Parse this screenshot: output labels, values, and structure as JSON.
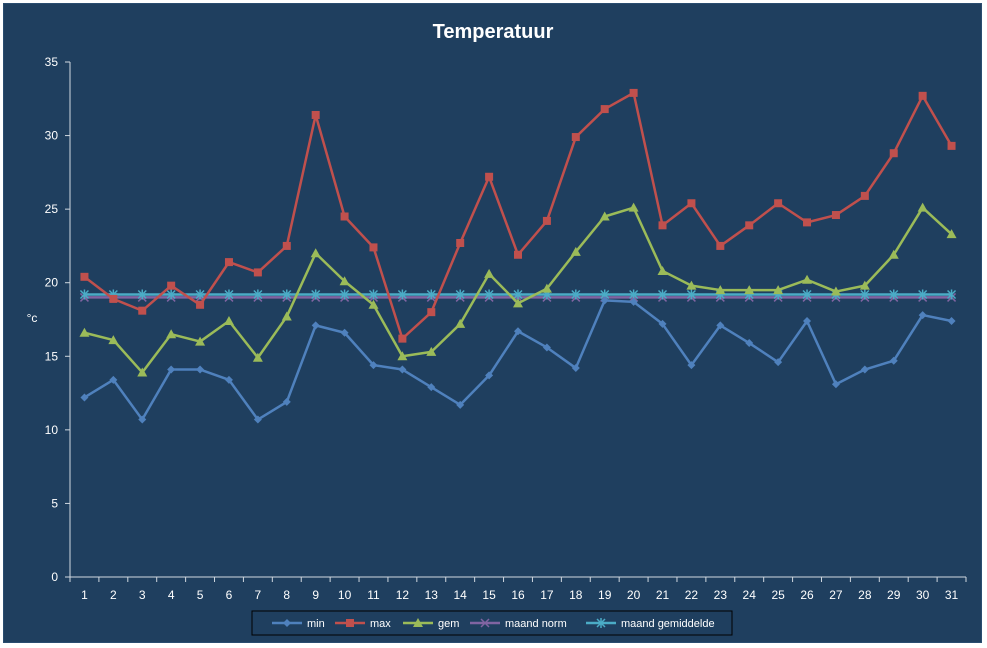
{
  "chart_data": {
    "type": "line",
    "title": "Temperatuur",
    "xlabel": "",
    "ylabel": "°c",
    "ylim": [
      0,
      35
    ],
    "yticks": [
      0,
      5,
      10,
      15,
      20,
      25,
      30,
      35
    ],
    "grid": false,
    "legend_position": "bottom",
    "background_color": "#1f3f5f",
    "x": [
      1,
      2,
      3,
      4,
      5,
      6,
      7,
      8,
      9,
      10,
      11,
      12,
      13,
      14,
      15,
      16,
      17,
      18,
      19,
      20,
      21,
      22,
      23,
      24,
      25,
      26,
      27,
      28,
      29,
      30,
      31
    ],
    "series": [
      {
        "name": "min",
        "color": "#4f81bd",
        "marker": "diamond",
        "values": [
          12.2,
          13.4,
          10.7,
          14.1,
          14.1,
          13.4,
          10.7,
          11.9,
          17.1,
          16.6,
          14.4,
          14.1,
          12.9,
          11.7,
          13.7,
          16.7,
          15.6,
          14.2,
          18.8,
          18.7,
          17.2,
          14.4,
          17.1,
          15.9,
          14.6,
          17.4,
          13.1,
          14.1,
          14.7,
          17.8,
          17.4
        ]
      },
      {
        "name": "max",
        "color": "#c0504d",
        "marker": "square",
        "values": [
          20.4,
          18.9,
          18.1,
          19.8,
          18.5,
          21.4,
          20.7,
          22.5,
          31.4,
          24.5,
          22.4,
          16.2,
          18.0,
          22.7,
          27.2,
          21.9,
          24.2,
          29.9,
          31.8,
          32.9,
          23.9,
          25.4,
          22.5,
          23.9,
          25.4,
          24.1,
          24.6,
          25.9,
          28.8,
          32.7,
          29.3
        ]
      },
      {
        "name": "gem",
        "color": "#9bbb59",
        "marker": "triangle",
        "values": [
          16.6,
          16.1,
          13.9,
          16.5,
          16.0,
          17.4,
          14.9,
          17.7,
          22.0,
          20.1,
          18.5,
          15.0,
          15.3,
          17.2,
          20.6,
          18.6,
          19.6,
          22.1,
          24.5,
          25.1,
          20.8,
          19.8,
          19.5,
          19.5,
          19.5,
          20.2,
          19.4,
          19.8,
          21.9,
          25.1,
          23.3
        ]
      },
      {
        "name": "maand norm",
        "color": "#8064a2",
        "marker": "x",
        "values": [
          19.0,
          19.0,
          19.0,
          19.0,
          19.0,
          19.0,
          19.0,
          19.0,
          19.0,
          19.0,
          19.0,
          19.0,
          19.0,
          19.0,
          19.0,
          19.0,
          19.0,
          19.0,
          19.0,
          19.0,
          19.0,
          19.0,
          19.0,
          19.0,
          19.0,
          19.0,
          19.0,
          19.0,
          19.0,
          19.0,
          19.0
        ]
      },
      {
        "name": "maand gemiddelde",
        "color": "#4bacc6",
        "marker": "star",
        "values": [
          19.2,
          19.2,
          19.2,
          19.2,
          19.2,
          19.2,
          19.2,
          19.2,
          19.2,
          19.2,
          19.2,
          19.2,
          19.2,
          19.2,
          19.2,
          19.2,
          19.2,
          19.2,
          19.2,
          19.2,
          19.2,
          19.2,
          19.2,
          19.2,
          19.2,
          19.2,
          19.2,
          19.2,
          19.2,
          19.2,
          19.2
        ]
      }
    ]
  }
}
